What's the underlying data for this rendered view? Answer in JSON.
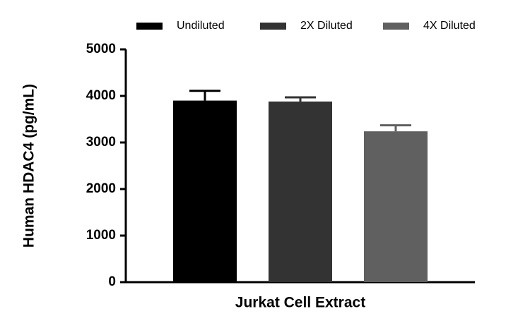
{
  "chart_data": {
    "type": "bar",
    "y_label": "Human HDAC4 (pg/mL)",
    "categories": [
      "Jurkat Cell Extract"
    ],
    "series": [
      {
        "name": "Undiluted",
        "color": "#000000",
        "values": [
          3900
        ],
        "errors": [
          210
        ]
      },
      {
        "name": "2X Diluted",
        "color": "#333333",
        "values": [
          3880
        ],
        "errors": [
          90
        ]
      },
      {
        "name": "4X Diluted",
        "color": "#606060",
        "values": [
          3240
        ],
        "errors": [
          130
        ]
      }
    ],
    "ylim": [
      0,
      5000
    ],
    "yticks": [
      0,
      1000,
      2000,
      3000,
      4000,
      5000
    ],
    "grid": false
  }
}
